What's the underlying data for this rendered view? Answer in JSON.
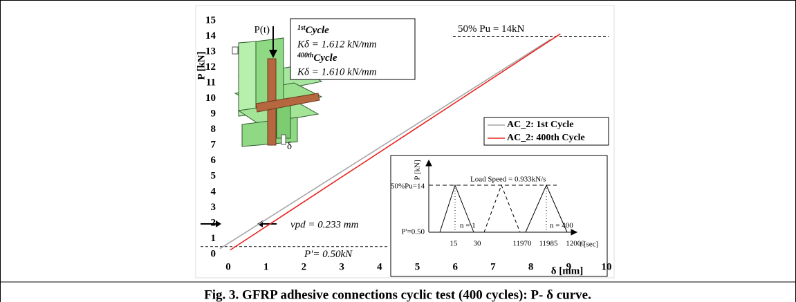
{
  "caption": "Fig. 3. GFRP adhesive connections cyclic test (400 cycles):  P- δ curve.",
  "chart_data": {
    "type": "line",
    "x_label": "δ [mm]",
    "y_label": "P [kN]",
    "xlim": [
      -0.7,
      10.1
    ],
    "ylim": [
      -1.4,
      15.2
    ],
    "xticks": [
      0,
      1,
      2,
      3,
      4,
      5,
      6,
      7,
      8,
      9,
      10
    ],
    "yticks": [
      0,
      1,
      2,
      3,
      4,
      5,
      6,
      7,
      8,
      9,
      10,
      11,
      12,
      13,
      14,
      15
    ],
    "series": [
      {
        "name": "AC_2: 1st Cycle",
        "color": "#a6a6a6",
        "x": [
          -0.22,
          8.52
        ],
        "values": [
          0.36,
          13.8
        ]
      },
      {
        "name": "AC_2: 400th Cycle",
        "color": "#e8231f",
        "x": [
          0.05,
          8.78
        ],
        "values": [
          0.27,
          14.16
        ]
      }
    ],
    "reference_lines": [
      {
        "label": "50% Pu = 14kN",
        "value": 14
      },
      {
        "label": "P'= 0.50kN",
        "value": 0.5
      }
    ],
    "offset_label": "vpd = 0.233 mm",
    "cycles": [
      {
        "ordinal": "1st",
        "label": "Cycle",
        "stiffness": "Kδ = 1.612 kN/mm"
      },
      {
        "ordinal": "400th",
        "label": "Cycle",
        "stiffness": "Kδ = 1.610 kN/mm"
      }
    ],
    "illustration": {
      "load": "P(t)",
      "displacement": "δ"
    },
    "inset": {
      "y_label": "P [kN]",
      "x_label": "t [sec]",
      "y_labels": [
        "50%Pu=14",
        "P'=0.50"
      ],
      "x_labels": [
        "15",
        "30",
        "11970",
        "11985",
        "12000"
      ],
      "speed": "Load Speed = 0.933kN/s",
      "cycle_labels": [
        "n = 1",
        "n = 400"
      ]
    }
  }
}
